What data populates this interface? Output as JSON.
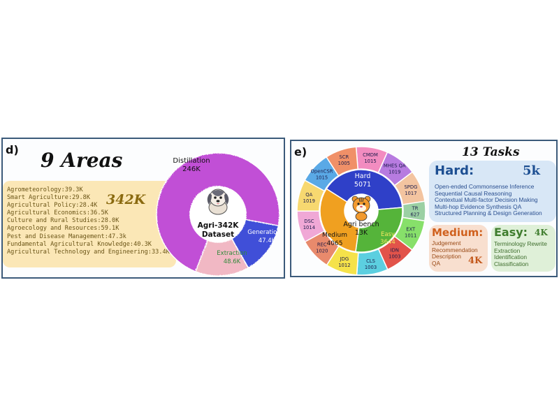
{
  "panel_d": {
    "label": "d)",
    "title": "9 Areas",
    "total": "342K",
    "areas": [
      "Agrometeorology:39.3K",
      "Smart Agriculture:29.8K",
      "Agricultural Policy:28.4K",
      "Agricultural Economics:36.5K",
      "Culture and Rural  Studies:28.0K",
      "Agroecology and Resources:59.1K",
      "Pest and Disease Management:47.3k",
      "Fundamental Agricultural Knowledge:40.3K",
      "Agricultural Technology and Engineering:33.4K"
    ],
    "donut": {
      "center_line1": "Agri-342K",
      "center_line2": "Dataset",
      "segments": [
        {
          "name": "Distillation",
          "value_label": "246K",
          "value": 246,
          "color": "#c150d6"
        },
        {
          "name": "Generation",
          "value_label": "47.4K",
          "value": 47.4,
          "color": "#3f4fd8"
        },
        {
          "name": "Extraction",
          "value_label": "48.6K",
          "value": 48.6,
          "color": "#f1b8c4"
        }
      ]
    }
  },
  "panel_e": {
    "label": "e)",
    "title": "13 Tasks",
    "inner": {
      "center_line1": "Agri bench",
      "center_line2": "13K",
      "segments": [
        {
          "name": "Hard",
          "value_label": "5071",
          "value": 5071,
          "color": "#2f40c8"
        },
        {
          "name": "Easy",
          "value_label": "3644",
          "value": 3644,
          "color": "#55b43a"
        },
        {
          "name": "Medium",
          "value_label": "4065",
          "value": 4065,
          "color": "#f0a020"
        }
      ]
    },
    "outer": {
      "segments": [
        {
          "name": "CMDM",
          "value_label": "1015",
          "color": "#f28cc0"
        },
        {
          "name": "MHES QA",
          "value_label": "1019",
          "color": "#b77be0"
        },
        {
          "name": "SPDG",
          "value_label": "1017",
          "color": "#f3c4a0"
        },
        {
          "name": "TR",
          "value_label": "627",
          "color": "#9bd0a3"
        },
        {
          "name": "EXT",
          "value_label": "1011",
          "color": "#87e06a"
        },
        {
          "name": "IDN",
          "value_label": "1003",
          "color": "#e2534a"
        },
        {
          "name": "CLS",
          "value_label": "1003",
          "color": "#5ccfe0"
        },
        {
          "name": "JDG",
          "value_label": "1012",
          "color": "#f5e24a"
        },
        {
          "name": "REC",
          "value_label": "1020",
          "color": "#e88a6c"
        },
        {
          "name": "DSC",
          "value_label": "1014",
          "color": "#f0a8d6"
        },
        {
          "name": "QA",
          "value_label": "1019",
          "color": "#f7d870"
        },
        {
          "name": "OpenCSR",
          "value_label": "1015",
          "color": "#5aa9e6"
        },
        {
          "name": "SCR",
          "value_label": "1005",
          "color": "#f09068"
        }
      ]
    },
    "hard_box": {
      "title": "Hard:",
      "count": "5k",
      "tasks": [
        "Open-ended Commonsense Inference",
        "Sequential Causal Reasoning",
        "Contextual Multi-factor Decision Making",
        "Multi-hop Evidence Synthesis QA",
        "Structured Planning & Design Generation"
      ]
    },
    "medium_box": {
      "title": "Medium:",
      "count": "4K",
      "tasks": [
        "Judgement",
        "Recommendation",
        "Description",
        "QA"
      ]
    },
    "easy_box": {
      "title": "Easy:",
      "count": "4K",
      "tasks": [
        "Terminology Rewrite",
        "Extraction",
        "Identification",
        "Classification"
      ]
    }
  }
}
